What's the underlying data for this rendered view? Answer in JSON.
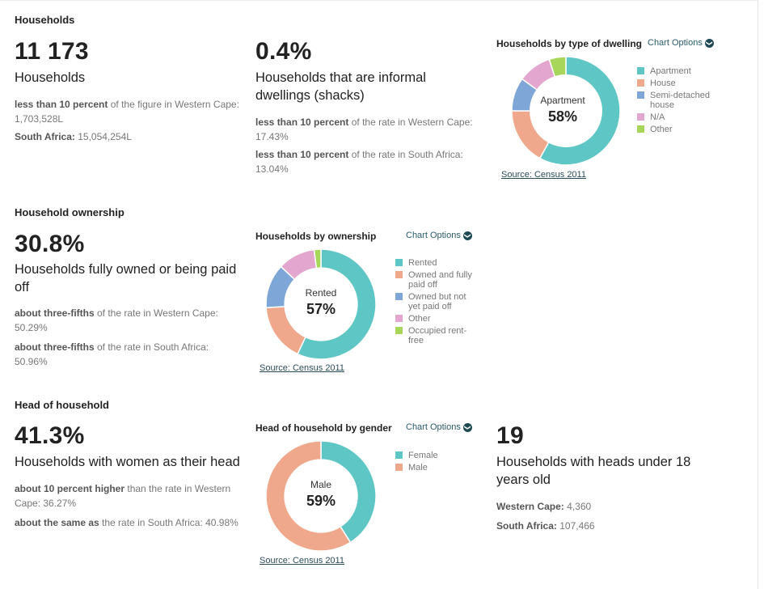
{
  "households": {
    "section_title": "Households",
    "count_value": "11 173",
    "count_label": "Households",
    "count_cmp1_bold": "less than 10 percent",
    "count_cmp1_text": " of the figure in Western Cape: 1,703,528L",
    "count_cmp2_bold": "South Africa:",
    "count_cmp2_text": " 15,054,254L",
    "informal_value": "0.4%",
    "informal_label": "Households that are informal dwellings (shacks)",
    "informal_cmp1_bold": "less than 10 percent",
    "informal_cmp1_text": " of the rate in Western Cape: 17.43%",
    "informal_cmp2_bold": "less than 10 percent",
    "informal_cmp2_text": " of the rate in South Africa: 13.04%"
  },
  "ownership": {
    "section_title": "Household ownership",
    "value": "30.8%",
    "label": "Households fully owned or being paid off",
    "cmp1_bold": "about three-fifths",
    "cmp1_text": " of the rate in Western Cape: 50.29%",
    "cmp2_bold": "about three-fifths",
    "cmp2_text": " of the rate in South Africa: 50.96%"
  },
  "head": {
    "section_title": "Head of household",
    "women_value": "41.3%",
    "women_label": "Households with women as their head",
    "women_cmp1_bold": "about 10 percent higher",
    "women_cmp1_text": " than the rate in Western Cape: 36.27%",
    "women_cmp2_bold": "about the same as",
    "women_cmp2_text": " the rate in South Africa: 40.98%",
    "under18_value": "19",
    "under18_label": "Households with heads under 18 years old",
    "under18_cmp1_bold": "Western Cape:",
    "under18_cmp1_text": " 4,360",
    "under18_cmp2_bold": "South Africa:",
    "under18_cmp2_text": " 107,466"
  },
  "ui": {
    "chart_options": "Chart Options",
    "chevron_glyph": "❯",
    "source": "Source: Census 2011"
  },
  "colors": {
    "teal": "#5ec6c4",
    "salmon": "#f0a88c",
    "blue": "#7ea6d6",
    "pink": "#e3a6cf",
    "green": "#a7d65a",
    "muted_text": "#777777",
    "link": "#2a4c5a"
  },
  "chart_data": [
    {
      "type": "pie",
      "title": "Households by type of dwelling",
      "center_label": "Apartment",
      "center_value": "58%",
      "categories": [
        "Apartment",
        "House",
        "Semi-detached house",
        "N/A",
        "Other"
      ],
      "values": [
        58,
        17,
        10,
        10,
        5
      ],
      "colors": [
        "#5ec6c4",
        "#f0a88c",
        "#7ea6d6",
        "#e3a6cf",
        "#a7d65a"
      ],
      "legend": "right"
    },
    {
      "type": "pie",
      "title": "Households by ownership",
      "center_label": "Rented",
      "center_value": "57%",
      "categories": [
        "Rented",
        "Owned and fully paid off",
        "Owned but not yet paid off",
        "Other",
        "Occupied rent-free"
      ],
      "values": [
        57,
        17,
        13,
        11,
        2
      ],
      "colors": [
        "#5ec6c4",
        "#f0a88c",
        "#7ea6d6",
        "#e3a6cf",
        "#a7d65a"
      ],
      "legend": "right"
    },
    {
      "type": "pie",
      "title": "Head of household by gender",
      "center_label": "Male",
      "center_value": "59%",
      "categories": [
        "Female",
        "Male"
      ],
      "values": [
        41,
        59
      ],
      "colors": [
        "#5ec6c4",
        "#f0a88c"
      ],
      "legend": "right"
    }
  ]
}
